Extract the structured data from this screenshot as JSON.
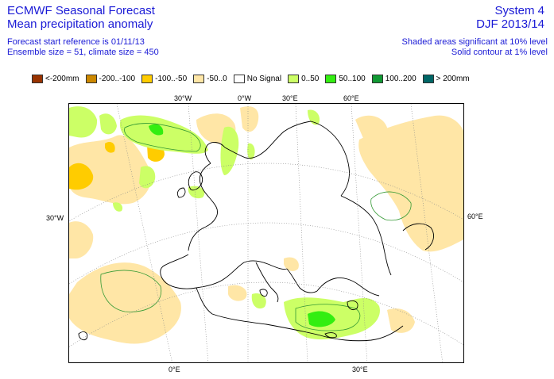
{
  "header": {
    "title_line1": "ECMWF Seasonal Forecast",
    "title_line2": "Mean precipitation anomaly",
    "info_line1": "Forecast start reference is 01/11/13",
    "info_line2": "Ensemble size = 51, climate size = 450",
    "system": "System 4",
    "season": "DJF 2013/14",
    "shaded_note": "Shaded areas significant at 10% level",
    "contour_note": "Solid contour at 1% level"
  },
  "legend": [
    {
      "label": "<-200mm",
      "color": "#993300"
    },
    {
      "label": "-200..-100",
      "color": "#cc8800"
    },
    {
      "label": "-100..-50",
      "color": "#ffcc00"
    },
    {
      "label": "-50..0",
      "color": "#ffe6a6"
    },
    {
      "label": "No Signal",
      "color": "#ffffff"
    },
    {
      "label": "0..50",
      "color": "#ccff66"
    },
    {
      "label": "50..100",
      "color": "#33ee11"
    },
    {
      "label": "100..200",
      "color": "#119933"
    },
    {
      "label": "> 200mm",
      "color": "#006666"
    }
  ],
  "axis_labels": {
    "top": [
      "30°W",
      "0°W",
      "30°E",
      "60°E"
    ],
    "left": "30°W",
    "right": "60°E",
    "bottom": [
      "0°E",
      "30°E"
    ]
  }
}
